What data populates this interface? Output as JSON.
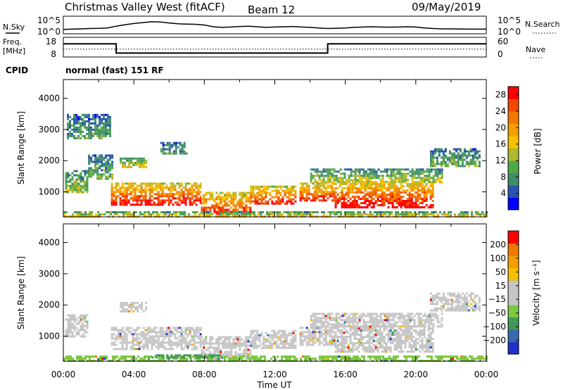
{
  "header": {
    "station": "Christmas Valley West (fitACF)",
    "beam": "Beam 12",
    "date": "09/May/2019",
    "cpid_label": "CPID",
    "cpid_value": "normal (fast) 151 RF"
  },
  "chart_data": [
    {
      "type": "line",
      "panel": "noise",
      "ylabel_left": "N.Sky",
      "ylabel_right": "N.Search",
      "ytick_left": [
        "10^5",
        "10^0"
      ],
      "ytick_right": [
        "10^5",
        "10^0"
      ],
      "series": [
        {
          "name": "N.Sky",
          "style": "solid",
          "x_hours": [
            0,
            0.5,
            1,
            1.5,
            2,
            2.5,
            3,
            3.5,
            4,
            4.5,
            5,
            5.5,
            6,
            6.5,
            7,
            7.5,
            8,
            8.5,
            9,
            9.5,
            10,
            10.5,
            11,
            11.5,
            12,
            12.5,
            13,
            13.5,
            14,
            14.5,
            15,
            15.5,
            16,
            16.5,
            17,
            17.5,
            18,
            18.5,
            19,
            19.5,
            20,
            20.5,
            21,
            21.5,
            22,
            22.5,
            23,
            23.5,
            24
          ],
          "level": [
            0.2,
            0.22,
            0.24,
            0.26,
            0.27,
            0.3,
            0.42,
            0.52,
            0.6,
            0.66,
            0.72,
            0.7,
            0.64,
            0.58,
            0.56,
            0.55,
            0.5,
            0.38,
            0.34,
            0.36,
            0.4,
            0.42,
            0.38,
            0.34,
            0.36,
            0.38,
            0.4,
            0.36,
            0.34,
            0.3,
            0.26,
            0.28,
            0.3,
            0.34,
            0.36,
            0.38,
            0.36,
            0.35,
            0.36,
            0.38,
            0.36,
            0.3,
            0.26,
            0.24,
            0.24,
            0.23,
            0.22,
            0.22,
            0.22
          ]
        }
      ]
    },
    {
      "type": "line",
      "panel": "frequency",
      "ylabel_left": "Freq.\n[MHz]",
      "ylabel_right": "Nave",
      "ytick_left": [
        "18",
        "8"
      ],
      "ytick_right": [
        "60",
        "0"
      ],
      "ylim_left": [
        8,
        18
      ],
      "ylim_right": [
        0,
        60
      ],
      "series": [
        {
          "name": "Freq.",
          "style": "solid",
          "x_hours": [
            0,
            3,
            3,
            15,
            15,
            24
          ],
          "y": [
            15,
            15,
            9.5,
            9.5,
            15,
            15
          ]
        },
        {
          "name": "Nave",
          "style": "dotted",
          "x_hours": [
            0,
            24
          ],
          "y": [
            23,
            23
          ]
        }
      ]
    },
    {
      "type": "heatmap",
      "panel": "power",
      "ylabel": "Slant Range [km]",
      "ylim": [
        200,
        4600
      ],
      "yticks": [
        1000,
        2000,
        3000,
        4000
      ],
      "xlim_hours": [
        0,
        24
      ],
      "colorbar": {
        "label": "Power [dB]",
        "ticks": [
          "4",
          "8",
          "12",
          "16",
          "20",
          "24",
          "28"
        ],
        "colors": [
          "#0000ff",
          "#2a54b0",
          "#3f8e6a",
          "#4fa848",
          "#aeb830",
          "#f6c100",
          "#f59e00",
          "#f07800",
          "#f24800",
          "#ff0000"
        ]
      },
      "regions": [
        {
          "x_start": 2.7,
          "x_end": 7.8,
          "r_low": 600,
          "r_high": 1300,
          "level": 0.9
        },
        {
          "x_start": 7.8,
          "x_end": 10.6,
          "r_low": 300,
          "r_high": 1000,
          "level": 0.85
        },
        {
          "x_start": 10.6,
          "x_end": 13.2,
          "r_low": 600,
          "r_high": 1200,
          "level": 0.85
        },
        {
          "x_start": 13.4,
          "x_end": 15.4,
          "r_low": 700,
          "r_high": 1300,
          "level": 0.88
        },
        {
          "x_start": 15.4,
          "x_end": 21.0,
          "r_low": 500,
          "r_high": 1350,
          "level": 0.9
        },
        {
          "x_start": 14.0,
          "x_end": 21.5,
          "r_low": 1300,
          "r_high": 1750,
          "level": 0.45
        },
        {
          "x_start": 0.1,
          "x_end": 1.3,
          "r_low": 1000,
          "r_high": 1700,
          "level": 0.4
        },
        {
          "x_start": 1.4,
          "x_end": 2.8,
          "r_low": 1400,
          "r_high": 2200,
          "level": 0.35
        },
        {
          "x_start": 3.2,
          "x_end": 4.7,
          "r_low": 1800,
          "r_high": 2100,
          "level": 0.5
        },
        {
          "x_start": 5.5,
          "x_end": 7.0,
          "r_low": 2200,
          "r_high": 2600,
          "level": 0.3
        },
        {
          "x_start": 20.8,
          "x_end": 23.6,
          "r_low": 1800,
          "r_high": 2400,
          "level": 0.35
        },
        {
          "x_start": 0.2,
          "x_end": 2.7,
          "r_low": 2700,
          "r_high": 3500,
          "level": 0.3
        },
        {
          "x_start": 0.0,
          "x_end": 24.0,
          "r_low": 220,
          "r_high": 380,
          "level": 0.55
        }
      ]
    },
    {
      "type": "heatmap",
      "panel": "velocity",
      "ylabel": "Slant Range [km]",
      "ylim": [
        200,
        4600
      ],
      "yticks": [
        1000,
        2000,
        3000,
        4000
      ],
      "xlim_hours": [
        0,
        24
      ],
      "xticks": [
        "00:00",
        "04:00",
        "08:00",
        "12:00",
        "16:00",
        "20:00",
        "00:00"
      ],
      "xlabel": "Time UT",
      "colorbar": {
        "label": "Velocity [m s⁻¹]",
        "ticks": [
          "200",
          "100",
          "50",
          "15",
          "−15",
          "−50",
          "−100",
          "−200"
        ],
        "colors": [
          "#2030c8",
          "#3a6ab0",
          "#3f9a58",
          "#7cc840",
          "#c6c6c6",
          "#c6c6c6",
          "#f4c000",
          "#f59e00",
          "#f07800",
          "#ff0000"
        ]
      },
      "regions": [
        {
          "x_start": 2.7,
          "x_end": 7.8,
          "r_low": 600,
          "r_high": 1300,
          "color": "#c6c6c6"
        },
        {
          "x_start": 7.8,
          "x_end": 10.6,
          "r_low": 300,
          "r_high": 1000,
          "color": "#c6c6c6"
        },
        {
          "x_start": 10.6,
          "x_end": 13.2,
          "r_low": 600,
          "r_high": 1200,
          "color": "#c6c6c6"
        },
        {
          "x_start": 13.4,
          "x_end": 15.4,
          "r_low": 700,
          "r_high": 1300,
          "color": "#c6c6c6"
        },
        {
          "x_start": 15.4,
          "x_end": 21.0,
          "r_low": 500,
          "r_high": 1350,
          "color": "#c6c6c6"
        },
        {
          "x_start": 14.0,
          "x_end": 21.5,
          "r_low": 1300,
          "r_high": 1750,
          "color": "#c6c6c6"
        },
        {
          "x_start": 0.1,
          "x_end": 1.3,
          "r_low": 1000,
          "r_high": 1700,
          "color": "#c6c6c6"
        },
        {
          "x_start": 3.2,
          "x_end": 4.7,
          "r_low": 1800,
          "r_high": 2100,
          "color": "#c6c6c6"
        },
        {
          "x_start": 20.8,
          "x_end": 23.6,
          "r_low": 1800,
          "r_high": 2400,
          "color": "#c6c6c6"
        },
        {
          "x_start": 0.0,
          "x_end": 24.0,
          "r_low": 220,
          "r_high": 380,
          "color": "#7cc840"
        },
        {
          "x_start": 5.0,
          "x_end": 9.0,
          "r_low": 300,
          "r_high": 420,
          "color": "#3f9a58"
        }
      ]
    }
  ]
}
